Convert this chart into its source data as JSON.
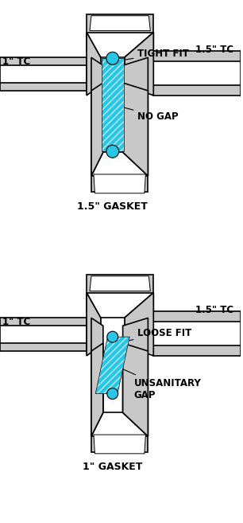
{
  "bg_color": "#ffffff",
  "gray": "#c8c8c8",
  "white": "#ffffff",
  "blue": "#29c5e6",
  "black": "#000000",
  "diagram1": {
    "label_top_tc": "1.5\" TC",
    "label_left_tc": "1\" TC",
    "label_fit": "TIGHT FIT",
    "label_gap": "NO GAP",
    "label_gasket": "1.5\" GASKET",
    "correct": true
  },
  "diagram2": {
    "label_top_tc": "1.5\" TC",
    "label_left_tc": "1\" TC",
    "label_fit": "LOOSE FIT",
    "label_gap": "UNSANITARY\nGAP",
    "label_gasket": "1\" GASKET",
    "correct": false
  }
}
